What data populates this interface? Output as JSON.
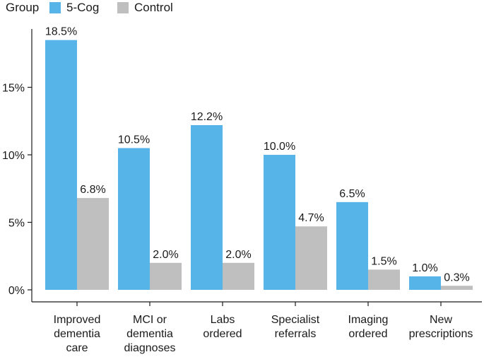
{
  "chart_data": {
    "type": "bar",
    "legend": {
      "title": "Group",
      "placement": "top-left",
      "entries": [
        {
          "name": "5-Cog",
          "color": "#56b4e9"
        },
        {
          "name": "Control",
          "color": "#bfbfbf"
        }
      ]
    },
    "categories": [
      [
        "Improved",
        "dementia",
        "care"
      ],
      [
        "MCI or",
        "dementia",
        "diagnoses"
      ],
      [
        "Labs",
        "ordered"
      ],
      [
        "Specialist",
        "referrals"
      ],
      [
        "Imaging",
        "ordered"
      ],
      [
        "New",
        "prescriptions"
      ]
    ],
    "series": [
      {
        "name": "5-Cog",
        "color": "#56b4e9",
        "values": [
          18.5,
          10.5,
          12.2,
          10.0,
          6.5,
          1.0
        ],
        "labels": [
          "18.5%",
          "10.5%",
          "12.2%",
          "10.0%",
          "6.5%",
          "1.0%"
        ]
      },
      {
        "name": "Control",
        "color": "#bfbfbf",
        "values": [
          6.8,
          2.0,
          2.0,
          4.7,
          1.5,
          0.3
        ],
        "labels": [
          "6.8%",
          "2.0%",
          "2.0%",
          "4.7%",
          "1.5%",
          "0.3%"
        ]
      }
    ],
    "y_ticks": [
      {
        "value": 0,
        "label": "0%"
      },
      {
        "value": 5,
        "label": "5%"
      },
      {
        "value": 10,
        "label": "10%"
      },
      {
        "value": 15,
        "label": "15%"
      }
    ],
    "ylim": [
      0,
      20
    ],
    "grid": false
  }
}
